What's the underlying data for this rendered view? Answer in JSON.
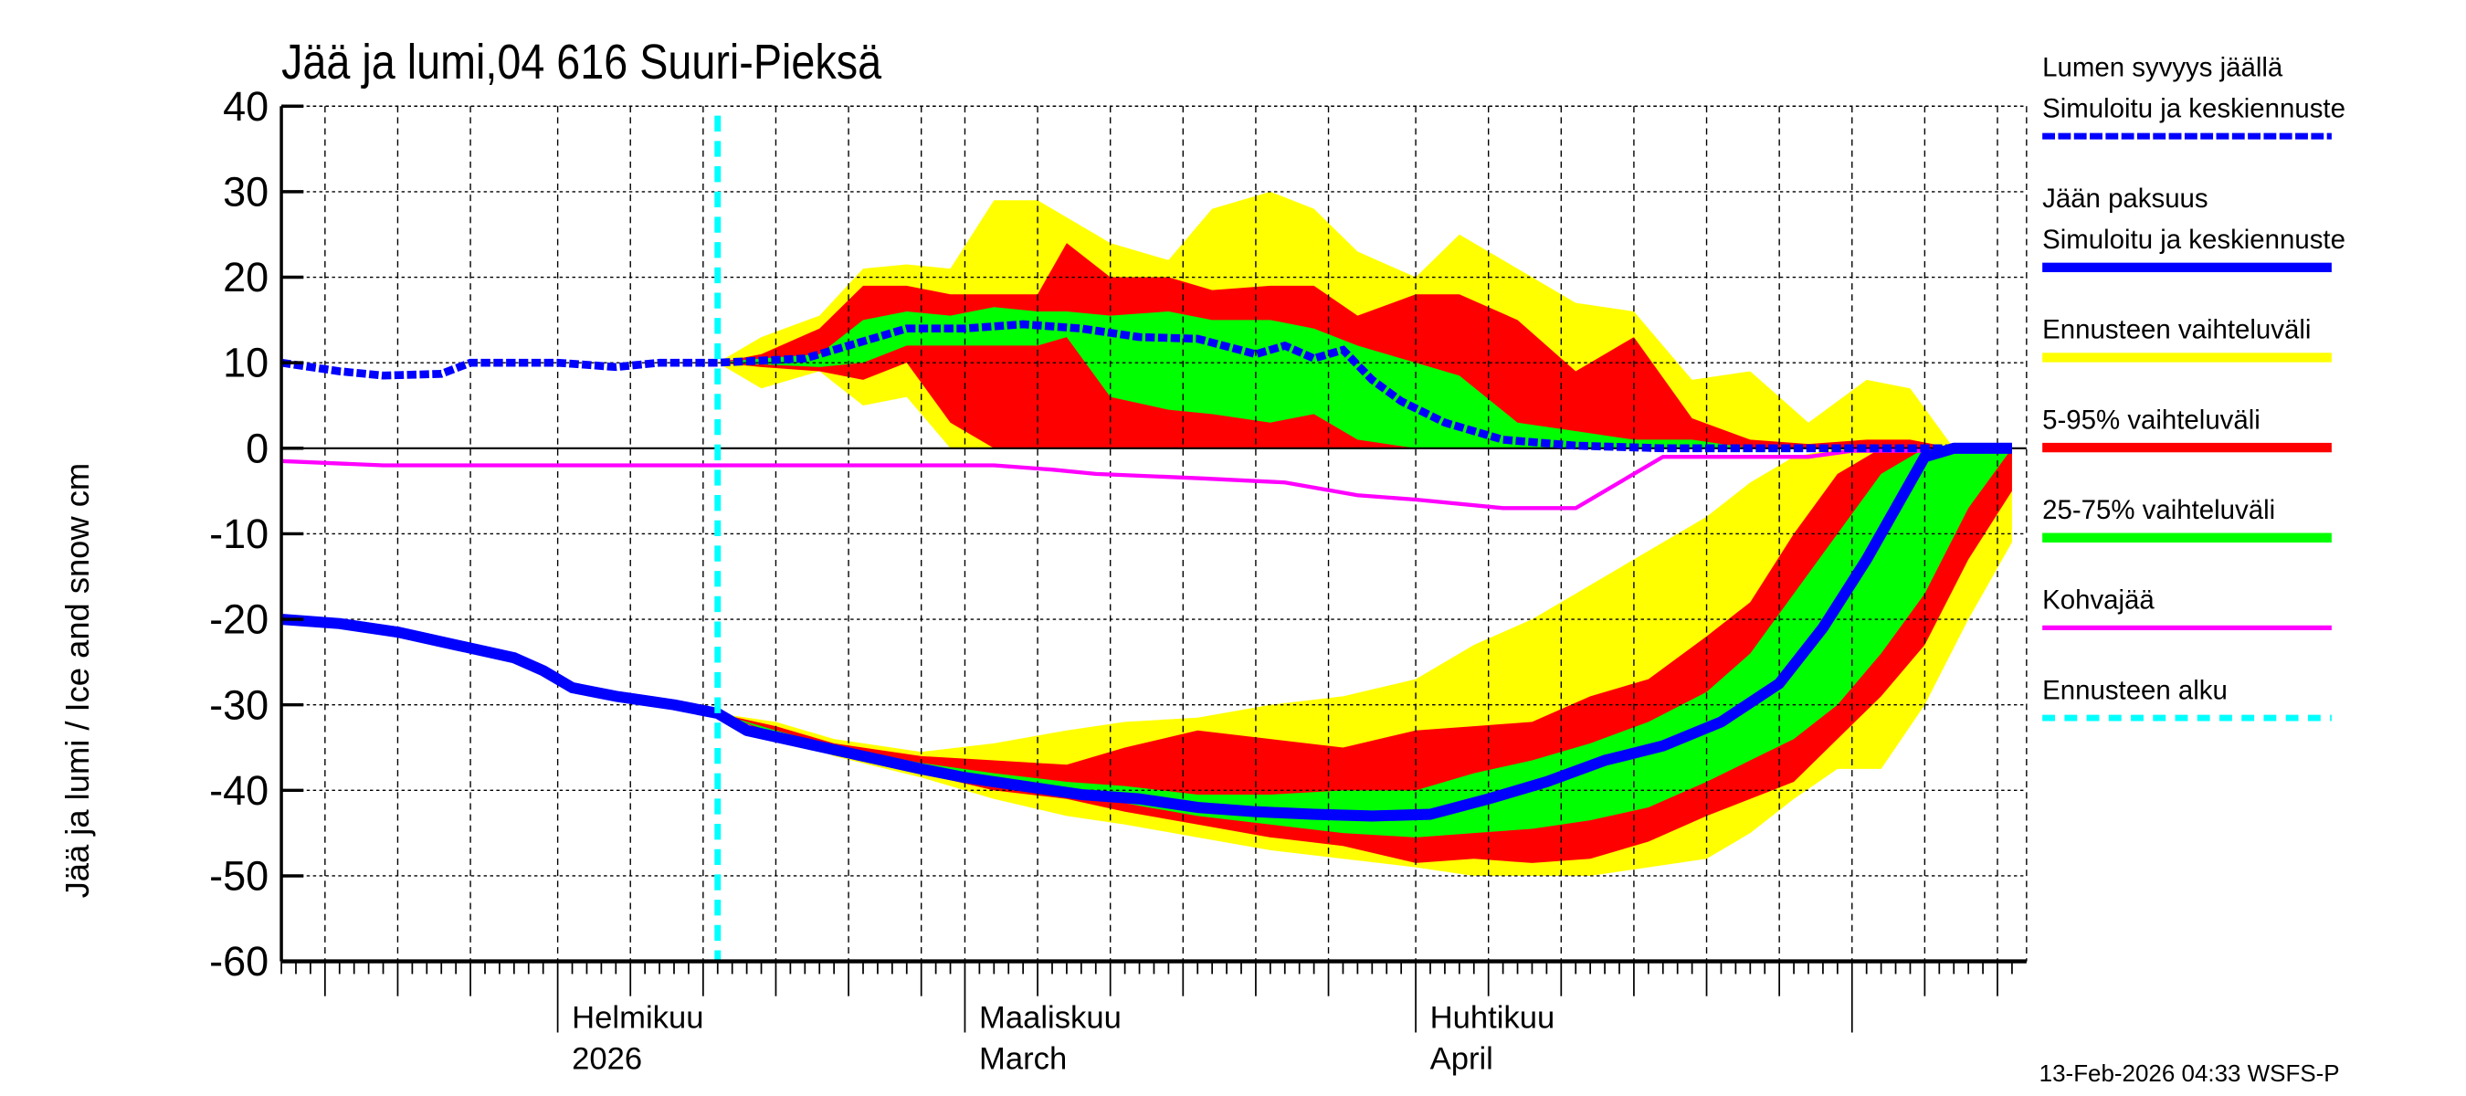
{
  "chart_data": {
    "type": "area",
    "title": "Jää ja lumi,04 616 Suuri-Pieksä",
    "ylabel": "Jää ja lumi / Ice and snow    cm",
    "xlabel": "",
    "ylim": [
      -60,
      40
    ],
    "yticks": [
      40,
      30,
      20,
      10,
      0,
      -10,
      -20,
      -30,
      -40,
      -50,
      -60
    ],
    "xlim": [
      "2026-01-13",
      "2026-05-12"
    ],
    "grid": true,
    "legend_position": "right",
    "month_labels": [
      {
        "date": "2026-02-01",
        "line1": "Helmikuu",
        "line2": "2026"
      },
      {
        "date": "2026-03-01",
        "line1": "Maaliskuu",
        "line2": "March"
      },
      {
        "date": "2026-04-01",
        "line1": "Huhtikuu",
        "line2": "April"
      }
    ],
    "month_ticks": [
      "2026-02-01",
      "2026-03-01",
      "2026-04-01",
      "2026-05-01"
    ],
    "forecast_start": "2026-02-12",
    "colors": {
      "snow": "#0000ff",
      "ice": "#0000ff",
      "range": "#ffff00",
      "p5_95": "#ff0000",
      "p25_75": "#00ff00",
      "slush": "#ff00ff",
      "forecast_start": "#00ffff"
    },
    "legend": [
      {
        "line1": "Lumen syvyys jäällä",
        "line2": "Simuloitu ja keskiennuste",
        "style": "dashed-blue"
      },
      {
        "line1": "Jään paksuus",
        "line2": "Simuloitu ja keskiennuste",
        "style": "solid-blue"
      },
      {
        "line1": "Ennusteen vaihteluväli",
        "style": "yellow"
      },
      {
        "line1": "5-95% vaihteluväli",
        "style": "red"
      },
      {
        "line1": "25-75% vaihteluväli",
        "style": "green"
      },
      {
        "line1": "Kohvajää",
        "style": "magenta"
      },
      {
        "line1": "Ennusteen alku",
        "style": "cyan-dashed"
      }
    ],
    "snow_depth": {
      "x": [
        "2026-01-13",
        "2026-01-17",
        "2026-01-20",
        "2026-01-24",
        "2026-01-26",
        "2026-02-01",
        "2026-02-05",
        "2026-02-08",
        "2026-02-12",
        "2026-02-18",
        "2026-02-22",
        "2026-02-25",
        "2026-03-01",
        "2026-03-05",
        "2026-03-09",
        "2026-03-13",
        "2026-03-17",
        "2026-03-21",
        "2026-03-23",
        "2026-03-25",
        "2026-03-27",
        "2026-03-29",
        "2026-03-31",
        "2026-04-03",
        "2026-04-07",
        "2026-04-12",
        "2026-04-18",
        "2026-05-12"
      ],
      "y": [
        10,
        9,
        8.5,
        8.7,
        10,
        10,
        9.5,
        10,
        10,
        10.5,
        12.5,
        14,
        14,
        14.5,
        14,
        13,
        12.8,
        11,
        12,
        10.5,
        11.5,
        8,
        5.5,
        3,
        1,
        0.3,
        0,
        0
      ]
    },
    "ice_thickness": {
      "x": [
        "2026-01-13",
        "2026-01-17",
        "2026-01-21",
        "2026-01-25",
        "2026-01-29",
        "2026-01-31",
        "2026-02-02",
        "2026-02-05",
        "2026-02-09",
        "2026-02-12",
        "2026-02-14",
        "2026-02-18",
        "2026-02-22",
        "2026-02-26",
        "2026-03-01",
        "2026-03-05",
        "2026-03-09",
        "2026-03-13",
        "2026-03-17",
        "2026-03-21",
        "2026-03-25",
        "2026-03-29",
        "2026-04-02",
        "2026-04-06",
        "2026-04-10",
        "2026-04-14",
        "2026-04-18",
        "2026-04-22",
        "2026-04-26",
        "2026-04-29",
        "2026-05-02",
        "2026-05-04",
        "2026-05-06",
        "2026-05-08",
        "2026-05-12"
      ],
      "y": [
        -20,
        -20.5,
        -21.5,
        -23,
        -24.5,
        -26,
        -28,
        -29,
        -30,
        -31,
        -33,
        -34.5,
        -36,
        -37.5,
        -38.5,
        -39.5,
        -40.5,
        -41,
        -42,
        -42.5,
        -42.8,
        -43,
        -42.8,
        -41,
        -39,
        -36.5,
        -34.8,
        -32,
        -27.5,
        -21,
        -13,
        -7,
        -1,
        0,
        0
      ]
    },
    "slush_ice": {
      "x": [
        "2026-01-13",
        "2026-01-20",
        "2026-03-03",
        "2026-03-07",
        "2026-03-10",
        "2026-03-17",
        "2026-03-23",
        "2026-03-28",
        "2026-04-01",
        "2026-04-07",
        "2026-04-12",
        "2026-04-15",
        "2026-04-18",
        "2026-04-28",
        "2026-05-01",
        "2026-05-12"
      ],
      "y": [
        -1.5,
        -2,
        -2,
        -2.5,
        -3,
        -3.5,
        -4,
        -5.5,
        -6,
        -7,
        -7,
        -4,
        -1,
        -1,
        -0.3,
        -0.3
      ]
    },
    "snow_bands": {
      "x": [
        "2026-02-12",
        "2026-02-15",
        "2026-02-19",
        "2026-02-22",
        "2026-02-25",
        "2026-02-28",
        "2026-03-03",
        "2026-03-06",
        "2026-03-08",
        "2026-03-11",
        "2026-03-15",
        "2026-03-18",
        "2026-03-22",
        "2026-03-25",
        "2026-03-28",
        "2026-04-01",
        "2026-04-04",
        "2026-04-08",
        "2026-04-12",
        "2026-04-16",
        "2026-04-20",
        "2026-04-24",
        "2026-04-28",
        "2026-05-02",
        "2026-05-05",
        "2026-05-08",
        "2026-05-12"
      ],
      "range_low": [
        10,
        7,
        9,
        5,
        6,
        0,
        0,
        0,
        0,
        0,
        0,
        0,
        0,
        0,
        0,
        0,
        0,
        0,
        0,
        0,
        0,
        0,
        0,
        0,
        0,
        0,
        0
      ],
      "range_high": [
        10,
        13,
        15.5,
        21,
        21.5,
        21,
        29,
        29,
        27,
        24,
        22,
        28,
        30,
        28,
        23,
        20,
        25,
        21,
        17,
        16,
        8,
        9,
        3,
        8,
        7,
        0,
        0
      ],
      "p5": [
        10,
        9.5,
        9,
        8,
        10,
        3,
        0,
        0,
        0,
        0,
        0,
        0,
        0,
        0,
        0,
        0,
        0,
        0,
        0,
        0,
        0,
        0,
        0,
        0,
        0,
        0,
        0
      ],
      "p95": [
        10,
        11,
        14,
        19,
        19,
        18,
        18,
        18,
        24,
        20,
        20,
        18.5,
        19,
        19,
        15.5,
        18,
        18,
        15,
        9,
        13,
        3.5,
        1,
        0.5,
        1,
        1,
        0,
        0
      ],
      "p25": [
        10,
        9.8,
        9.5,
        10,
        12,
        12,
        12,
        12,
        13,
        6,
        4.5,
        4,
        3,
        4,
        1,
        0,
        0,
        0,
        0,
        0,
        0,
        0,
        0,
        0,
        0,
        0,
        0
      ],
      "p75": [
        10,
        10.5,
        11,
        15,
        16,
        15.5,
        16.5,
        16,
        16,
        15.5,
        16,
        15,
        15,
        14,
        12,
        10,
        8.5,
        3,
        2,
        1,
        1,
        0,
        0,
        0,
        0,
        0,
        0
      ]
    },
    "ice_bands": {
      "x": [
        "2026-02-12",
        "2026-02-16",
        "2026-02-20",
        "2026-02-26",
        "2026-03-03",
        "2026-03-08",
        "2026-03-12",
        "2026-03-17",
        "2026-03-22",
        "2026-03-27",
        "2026-04-01",
        "2026-04-05",
        "2026-04-09",
        "2026-04-13",
        "2026-04-17",
        "2026-04-21",
        "2026-04-24",
        "2026-04-27",
        "2026-04-30",
        "2026-05-03",
        "2026-05-06",
        "2026-05-09",
        "2026-05-12"
      ],
      "range_low": [
        -31,
        -33.5,
        -36,
        -38.5,
        -41,
        -43,
        -44,
        -45.5,
        -47,
        -48,
        -49,
        -50,
        -50,
        -50,
        -49,
        -48,
        -45,
        -41,
        -37.5,
        -37.5,
        -30,
        -20,
        -11
      ],
      "range_high": [
        -31,
        -32,
        -34,
        -35.5,
        -34.5,
        -33,
        -32,
        -31.5,
        -30,
        -29,
        -27,
        -23,
        -20,
        -16,
        -12,
        -8,
        -4,
        -1,
        0,
        0,
        0,
        0,
        0
      ],
      "p5": [
        -31,
        -33.5,
        -35.5,
        -38,
        -40,
        -41,
        -42.5,
        -44,
        -45.5,
        -46.5,
        -48.5,
        -48,
        -48.5,
        -48,
        -46,
        -43,
        -41,
        -39,
        -34,
        -29,
        -23,
        -13,
        -5
      ],
      "p95": [
        -31,
        -32.5,
        -34.5,
        -36,
        -36.5,
        -37,
        -35,
        -33,
        -34,
        -35,
        -33,
        -32.5,
        -32,
        -29,
        -27,
        -22,
        -18,
        -10,
        -3,
        0,
        0,
        -1,
        0
      ],
      "p25": [
        -31,
        -33.3,
        -35.2,
        -37.5,
        -39,
        -40.5,
        -41.5,
        -43,
        -44,
        -45,
        -45.5,
        -45,
        -44.5,
        -43.5,
        -42,
        -39,
        -36.5,
        -34,
        -30,
        -24,
        -17,
        -7,
        0
      ],
      "p75": [
        -31,
        -33,
        -34.8,
        -36.8,
        -38,
        -39,
        -39.5,
        -40.5,
        -40.5,
        -40,
        -40,
        -38,
        -36.5,
        -34.5,
        -32,
        -28.5,
        -24,
        -17,
        -10,
        -3,
        0,
        0,
        0
      ]
    }
  },
  "footer": {
    "timestamp": "13-Feb-2026 04:33 WSFS-P"
  }
}
